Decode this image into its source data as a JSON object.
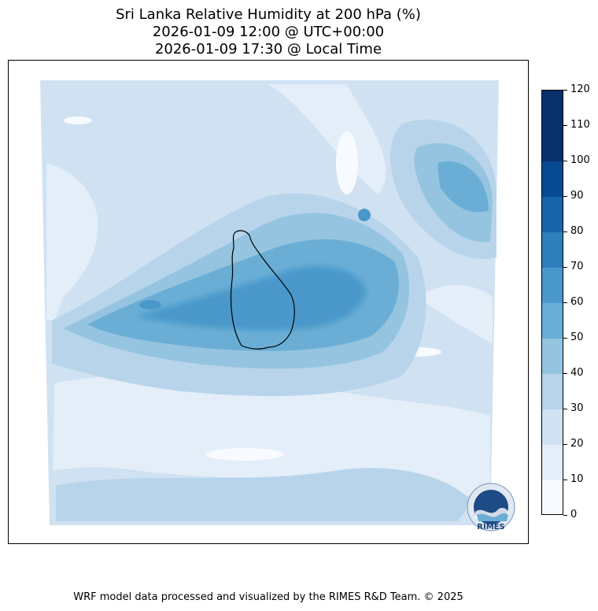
{
  "title": {
    "line1": "Sri Lanka Relative Humidity at 200 hPa (%)",
    "line2": "2026-01-09 12:00 @ UTC+00:00",
    "line3": "2026-01-09 17:30 @ Local Time"
  },
  "colorbar": {
    "levels": [
      "0",
      "10",
      "20",
      "30",
      "40",
      "50",
      "60",
      "70",
      "80",
      "90",
      "100",
      "110",
      "120"
    ],
    "colors": [
      "#f7fbff",
      "#e3eef9",
      "#d0e1f2",
      "#b7d4ea",
      "#94c4df",
      "#6aaed6",
      "#4a98c9",
      "#2e7ebc",
      "#1764ab",
      "#084a91",
      "#08306b",
      "#08306b"
    ]
  },
  "logo": {
    "text": "RIMES",
    "icon": "rimes-logo-icon"
  },
  "credit": "WRF model data processed and visualized by the RIMES R&D Team. © 2025"
}
